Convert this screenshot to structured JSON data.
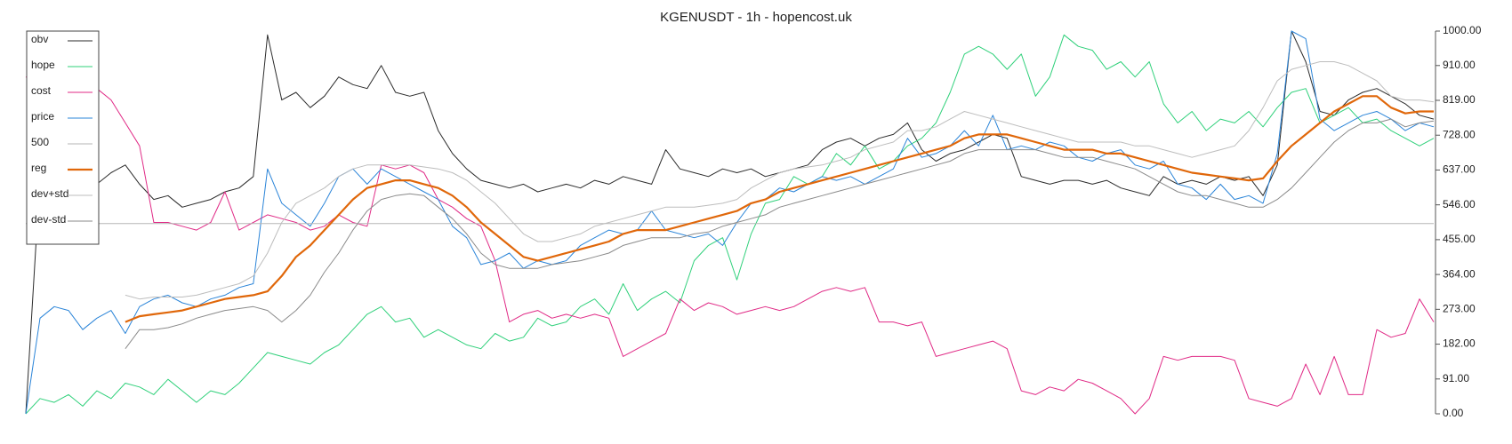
{
  "chart_data": {
    "type": "line",
    "title": "KGENUSDT - 1h - hopencost.uk",
    "ylim": [
      0,
      1000
    ],
    "yticks": [
      {
        "value": 0,
        "label": "0.00"
      },
      {
        "value": 91,
        "label": "91.00"
      },
      {
        "value": 182,
        "label": "182.00"
      },
      {
        "value": 273,
        "label": "273.00"
      },
      {
        "value": 364,
        "label": "364.00"
      },
      {
        "value": 455,
        "label": "455.00"
      },
      {
        "value": 546,
        "label": "546.00"
      },
      {
        "value": 637,
        "label": "637.00"
      },
      {
        "value": 728,
        "label": "728.00"
      },
      {
        "value": 819,
        "label": "819.00"
      },
      {
        "value": 910,
        "label": "910.00"
      },
      {
        "value": 1000,
        "label": "1000.00"
      }
    ],
    "legend": "upper-left",
    "series": [
      {
        "name": "obv",
        "color": "#2b2b2b",
        "width": 1,
        "values": [
          0,
          620,
          640,
          610,
          650,
          600,
          630,
          650,
          600,
          560,
          570,
          540,
          550,
          560,
          580,
          590,
          620,
          990,
          820,
          840,
          800,
          830,
          880,
          860,
          850,
          910,
          840,
          830,
          840,
          740,
          680,
          640,
          610,
          600,
          590,
          600,
          580,
          590,
          600,
          590,
          610,
          600,
          620,
          610,
          600,
          690,
          640,
          630,
          620,
          640,
          630,
          640,
          620,
          630,
          640,
          650,
          690,
          710,
          720,
          700,
          720,
          730,
          760,
          690,
          660,
          680,
          690,
          710,
          730,
          720,
          620,
          610,
          600,
          610,
          610,
          600,
          610,
          590,
          580,
          570,
          620,
          600,
          610,
          600,
          620,
          610,
          620,
          570,
          650,
          1000,
          920,
          790,
          780,
          820,
          840,
          850,
          830,
          810,
          780,
          770
        ]
      },
      {
        "name": "hope",
        "color": "#2fd07a",
        "width": 1,
        "values": [
          0,
          40,
          30,
          50,
          20,
          60,
          40,
          80,
          70,
          50,
          90,
          60,
          30,
          60,
          50,
          80,
          120,
          160,
          150,
          140,
          130,
          160,
          180,
          220,
          260,
          280,
          240,
          250,
          200,
          220,
          200,
          180,
          170,
          210,
          190,
          200,
          250,
          230,
          240,
          280,
          300,
          260,
          340,
          270,
          300,
          320,
          290,
          400,
          440,
          460,
          350,
          470,
          550,
          560,
          620,
          600,
          620,
          680,
          650,
          700,
          640,
          660,
          700,
          720,
          760,
          840,
          940,
          960,
          940,
          900,
          940,
          830,
          880,
          990,
          960,
          950,
          900,
          920,
          880,
          920,
          810,
          760,
          790,
          740,
          770,
          760,
          790,
          750,
          800,
          840,
          850,
          760,
          780,
          800,
          760,
          770,
          740,
          720,
          700,
          720
        ]
      },
      {
        "name": "cost",
        "color": "#e02a86",
        "width": 1,
        "values": [
          880,
          870,
          860,
          880,
          840,
          850,
          820,
          760,
          700,
          500,
          500,
          490,
          480,
          500,
          580,
          480,
          500,
          520,
          510,
          500,
          480,
          490,
          520,
          500,
          490,
          650,
          640,
          650,
          630,
          560,
          540,
          510,
          490,
          400,
          240,
          260,
          270,
          250,
          260,
          250,
          260,
          250,
          150,
          170,
          190,
          210,
          300,
          270,
          290,
          280,
          260,
          270,
          280,
          270,
          280,
          300,
          320,
          330,
          320,
          330,
          240,
          240,
          230,
          240,
          150,
          160,
          170,
          180,
          190,
          170,
          60,
          50,
          70,
          60,
          90,
          80,
          60,
          40,
          0,
          40,
          150,
          140,
          150,
          150,
          150,
          140,
          40,
          30,
          20,
          40,
          130,
          50,
          150,
          50,
          50,
          220,
          200,
          210,
          300,
          240
        ]
      },
      {
        "name": "price",
        "color": "#2a84d8",
        "width": 1,
        "values": [
          0,
          250,
          280,
          270,
          220,
          250,
          270,
          210,
          280,
          300,
          310,
          290,
          280,
          300,
          310,
          330,
          340,
          640,
          550,
          520,
          490,
          550,
          620,
          640,
          600,
          640,
          620,
          600,
          580,
          560,
          490,
          460,
          390,
          400,
          420,
          380,
          400,
          390,
          400,
          440,
          460,
          480,
          470,
          480,
          530,
          480,
          470,
          460,
          470,
          440,
          500,
          550,
          560,
          590,
          580,
          600,
          620,
          610,
          620,
          600,
          620,
          640,
          720,
          670,
          680,
          700,
          740,
          700,
          780,
          690,
          700,
          690,
          710,
          700,
          670,
          660,
          680,
          690,
          650,
          640,
          660,
          600,
          590,
          560,
          600,
          560,
          570,
          550,
          680,
          1000,
          980,
          770,
          740,
          760,
          780,
          790,
          770,
          740,
          760,
          750
        ]
      },
      {
        "name": "500",
        "color": "#b5b5b5",
        "width": 1,
        "values": [
          497,
          497,
          497,
          497,
          497,
          497,
          497,
          497,
          497,
          497,
          497,
          497,
          497,
          497,
          497,
          497,
          497,
          497,
          497,
          497,
          497,
          497,
          497,
          497,
          497,
          497,
          497,
          497,
          497,
          497,
          497,
          497,
          497,
          497,
          497,
          497,
          497,
          497,
          497,
          497,
          497,
          497,
          497,
          497,
          497,
          497,
          497,
          497,
          497,
          497,
          497,
          497,
          497,
          497,
          497,
          497,
          497,
          497,
          497,
          497,
          497,
          497,
          497,
          497,
          497,
          497,
          497,
          497,
          497,
          497,
          497,
          497,
          497,
          497,
          497,
          497,
          497,
          497,
          497,
          497,
          497,
          497,
          497,
          497,
          497,
          497,
          497,
          497,
          497,
          497,
          497,
          497,
          497,
          497,
          497,
          497,
          497,
          497,
          497,
          497
        ]
      },
      {
        "name": "reg",
        "color": "#e0670a",
        "width": 2.2,
        "values": [
          null,
          null,
          null,
          null,
          null,
          null,
          null,
          240,
          255,
          260,
          265,
          270,
          280,
          290,
          300,
          305,
          310,
          320,
          360,
          410,
          440,
          480,
          520,
          560,
          590,
          600,
          610,
          610,
          600,
          590,
          570,
          540,
          500,
          470,
          440,
          410,
          400,
          410,
          420,
          430,
          440,
          450,
          470,
          480,
          480,
          480,
          490,
          500,
          510,
          520,
          530,
          550,
          560,
          580,
          590,
          600,
          610,
          620,
          630,
          640,
          650,
          660,
          670,
          680,
          690,
          700,
          720,
          730,
          730,
          730,
          720,
          710,
          700,
          690,
          690,
          690,
          680,
          680,
          670,
          660,
          650,
          640,
          630,
          625,
          620,
          615,
          610,
          615,
          660,
          700,
          730,
          760,
          790,
          810,
          830,
          830,
          800,
          785,
          790,
          790
        ]
      },
      {
        "name": "dev+std",
        "color": "#bdbdbd",
        "width": 1,
        "values": [
          null,
          null,
          null,
          null,
          null,
          null,
          null,
          310,
          300,
          305,
          305,
          305,
          310,
          320,
          330,
          340,
          360,
          420,
          500,
          550,
          570,
          590,
          620,
          640,
          650,
          650,
          650,
          650,
          645,
          640,
          630,
          610,
          580,
          550,
          510,
          470,
          450,
          450,
          460,
          470,
          490,
          500,
          510,
          520,
          530,
          540,
          540,
          540,
          545,
          550,
          560,
          590,
          610,
          630,
          640,
          645,
          650,
          660,
          670,
          690,
          700,
          710,
          740,
          740,
          750,
          770,
          790,
          780,
          770,
          760,
          750,
          740,
          730,
          720,
          710,
          710,
          710,
          710,
          700,
          700,
          690,
          680,
          670,
          680,
          690,
          700,
          740,
          800,
          870,
          900,
          910,
          920,
          920,
          910,
          890,
          870,
          830,
          820,
          820,
          815
        ]
      },
      {
        "name": "dev-std",
        "color": "#8a8a8a",
        "width": 1,
        "values": [
          null,
          null,
          null,
          null,
          null,
          null,
          null,
          170,
          220,
          220,
          225,
          235,
          250,
          260,
          270,
          275,
          280,
          270,
          240,
          270,
          310,
          370,
          420,
          480,
          530,
          560,
          570,
          575,
          570,
          540,
          510,
          470,
          420,
          390,
          380,
          380,
          380,
          390,
          395,
          400,
          410,
          420,
          440,
          450,
          460,
          460,
          460,
          470,
          475,
          490,
          500,
          510,
          520,
          540,
          550,
          560,
          570,
          580,
          590,
          600,
          610,
          620,
          630,
          640,
          650,
          660,
          680,
          690,
          690,
          690,
          690,
          690,
          680,
          670,
          670,
          670,
          660,
          650,
          640,
          620,
          600,
          580,
          570,
          570,
          560,
          550,
          540,
          540,
          560,
          590,
          630,
          670,
          710,
          740,
          760,
          760,
          770,
          750,
          760,
          765
        ]
      }
    ]
  }
}
